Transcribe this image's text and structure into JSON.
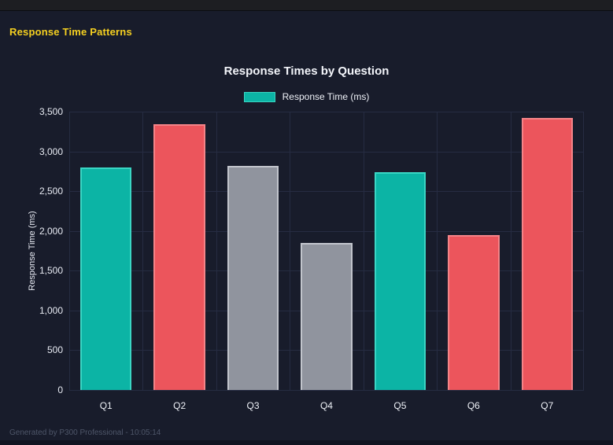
{
  "page": {
    "title": "Response Time Patterns",
    "footer": "Generated by P300 Professional - 10:05:14"
  },
  "colors": {
    "background": "#181c2b",
    "topbar": "#1d1e22",
    "accent_yellow": "#f5d020",
    "grid": "#262c42",
    "tick_text": "#e8ebf3",
    "footer_text": "#4e5669",
    "teal": "#0cb4a5",
    "teal_border": "#3ad6c4",
    "red": "#ec555c",
    "red_border": "#f48488",
    "gray": "#90949e",
    "gray_border": "#c2c5cc"
  },
  "chart_data": {
    "type": "bar",
    "title": "Response Times by Question",
    "legend": [
      {
        "label": "Response Time (ms)",
        "color_key": "teal"
      }
    ],
    "legend_position": "top",
    "categories": [
      "Q1",
      "Q2",
      "Q3",
      "Q4",
      "Q5",
      "Q6",
      "Q7"
    ],
    "series": [
      {
        "name": "Response Time (ms)",
        "values": [
          2800,
          3340,
          2820,
          1845,
          2740,
          1950,
          3420
        ]
      }
    ],
    "bar_colors": [
      "teal",
      "red",
      "gray",
      "gray",
      "teal",
      "red",
      "red"
    ],
    "xlabel": "",
    "ylabel": "Response Time (ms)",
    "ylim": [
      0,
      3500
    ],
    "ytick_step": 500,
    "grid": true
  }
}
